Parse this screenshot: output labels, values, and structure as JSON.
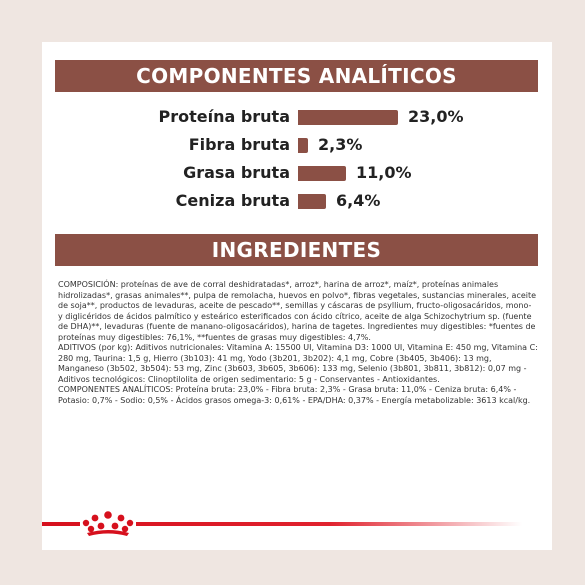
{
  "analytics": {
    "title": "COMPONENTES ANALÍTICOS",
    "rows": [
      {
        "label": "Proteína bruta",
        "value": "23,0%",
        "percent": 23.0
      },
      {
        "label": "Fibra bruta",
        "value": "2,3%",
        "percent": 2.3
      },
      {
        "label": "Grasa bruta",
        "value": "11,0%",
        "percent": 11.0
      },
      {
        "label": "Ceniza bruta",
        "value": "6,4%",
        "percent": 6.4
      }
    ]
  },
  "ingredients": {
    "title": "INGREDIENTES",
    "paragraphs": [
      "COMPOSICIÓN: proteínas de ave de corral deshidratadas*, arroz*, harina de arroz*, maíz*, proteínas animales hidrolizadas*, grasas animales**, pulpa de remolacha, huevos en polvo*, fibras vegetales, sustancias minerales, aceite de soja**, productos de levaduras, aceite de pescado**, semillas y cáscaras de psyllium, fructo-oligosacáridos, mono- y diglicéridos de ácidos palmítico y esteárico esterificados con ácido cítrico, aceite de alga Schizochytrium sp. (fuente de DHA)**, levaduras (fuente de manano-oligosacáridos), harina de tagetes. Ingredientes muy digestibles: *fuentes de proteínas muy digestibles: 76,1%, **fuentes de grasas muy digestibles: 4,7%.",
      "ADITIVOS (por kg): Aditivos nutricionales: Vitamina A: 15500 UI, Vitamina D3: 1000 UI, Vitamina E: 450 mg, Vitamina C: 280 mg, Taurina: 1,5 g, Hierro (3b103): 41 mg, Yodo (3b201, 3b202): 4,1 mg, Cobre (3b405, 3b406): 13 mg, Manganeso (3b502, 3b504): 53 mg, Zinc (3b603, 3b605, 3b606): 133 mg, Selenio (3b801, 3b811, 3b812): 0,07 mg - Aditivos tecnológicos: Clinoptilolita de origen sedimentario: 5 g - Conservantes - Antioxidantes.",
      "COMPONENTES ANALÍTICOS: Proteína bruta: 23,0% - Fibra bruta: 2,3% - Grasa bruta: 11,0% - Ceniza bruta: 6,4% - Potasio: 0,7% - Sodio: 0,5% - Ácidos grasos omega-3: 0,61% - EPA/DHA: 0,37% - Energía metabolizable: 3613 kcal/kg."
    ]
  },
  "colors": {
    "accent": "#8b5045",
    "brand_red": "#d6101d"
  },
  "logo": {
    "name": "royal-canin-crown-logo"
  }
}
